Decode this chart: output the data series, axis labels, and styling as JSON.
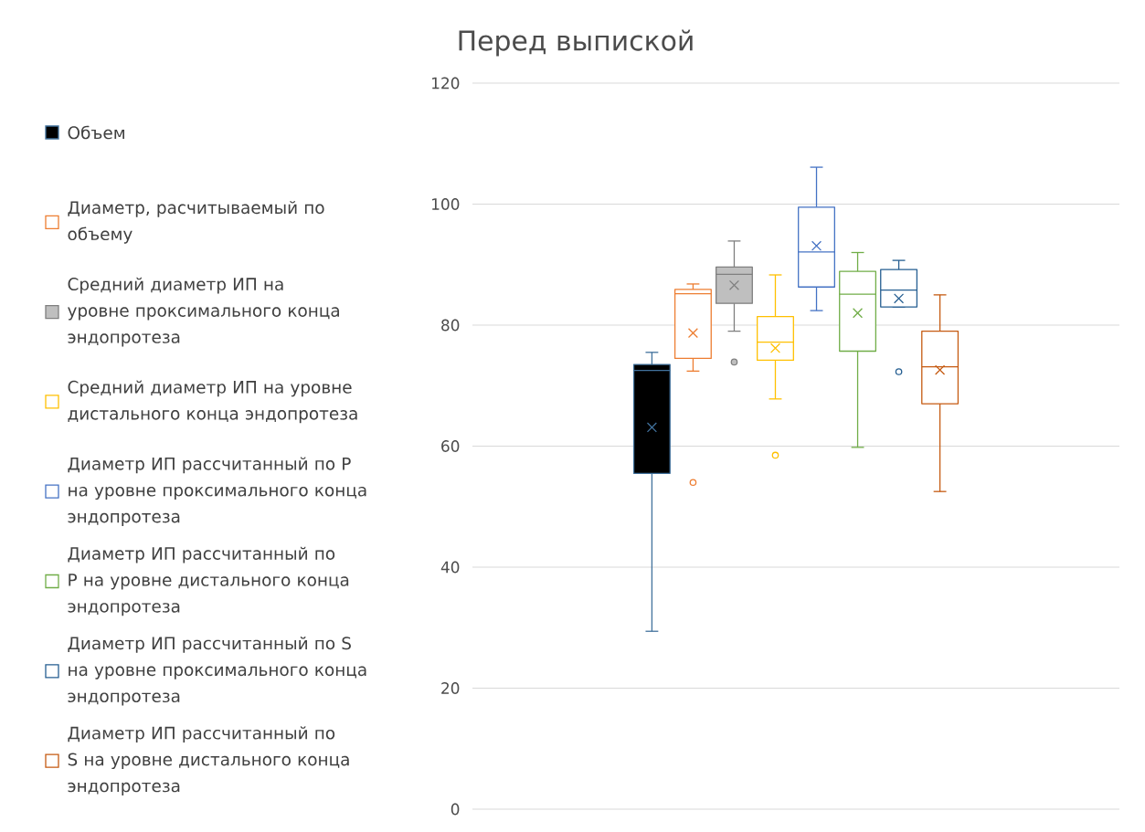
{
  "chart_data": {
    "type": "box",
    "title": "Перед выпиской",
    "categories": [
      null
    ],
    "ylim": [
      0,
      120
    ],
    "yticks": [
      0,
      20,
      40,
      60,
      80,
      100,
      120
    ],
    "grid": "y",
    "legend": "left",
    "series": [
      {
        "name": "Объем",
        "color": "#41719c",
        "colors": [
          "#000000"
        ],
        "boxes": [
          {
            "low": 29.4,
            "q1": 55.5,
            "median": 72.5,
            "q3": 73.5,
            "high": 75.5,
            "mean": 63.1
          }
        ]
      },
      {
        "name": "Диаметр, расчитываемый по объему",
        "color": "#ed7d31",
        "colors": [
          "#ffffff"
        ],
        "boxes": [
          {
            "low": 72.4,
            "q1": 74.5,
            "median": 85.2,
            "q3": 85.9,
            "high": 86.8,
            "mean": 78.7,
            "outliers": [
              54.0
            ]
          }
        ]
      },
      {
        "name": "Средний диаметр ИП на уровне проксимального конца эндопротеза",
        "color": "#7f7f7f",
        "colors": [
          "#bfbfbf"
        ],
        "boxes": [
          {
            "low": 79.0,
            "q1": 83.6,
            "median": 88.4,
            "q3": 89.6,
            "high": 93.9,
            "mean": 86.6,
            "outliers": [
              73.9
            ]
          }
        ]
      },
      {
        "name": "Средний диаметр ИП на уровне дистального конца эндопротеза",
        "color": "#ffc000",
        "colors": [
          "#ffffff"
        ],
        "boxes": [
          {
            "low": 67.8,
            "q1": 74.2,
            "median": 77.2,
            "q3": 81.4,
            "high": 88.3,
            "mean": 76.2,
            "outliers": [
              58.5
            ]
          }
        ]
      },
      {
        "name": "Диаметр ИП рассчитанный по P на уровне проксимального конца эндопротеза",
        "color": "#4472c4",
        "colors": [
          "#ffffff"
        ],
        "boxes": [
          {
            "low": 82.4,
            "q1": 86.3,
            "median": 92.1,
            "q3": 99.5,
            "high": 106.1,
            "mean": 93.1
          }
        ]
      },
      {
        "name": "Диаметр ИП рассчитанный по P на уровне дистального конца эндопротеза",
        "color": "#70ad47",
        "colors": [
          "#ffffff"
        ],
        "boxes": [
          {
            "low": 59.8,
            "q1": 75.7,
            "median": 85.1,
            "q3": 88.9,
            "high": 92.0,
            "mean": 82.0
          }
        ]
      },
      {
        "name": "Диаметр ИП рассчитанный по S на уровне проксимального конца эндопротеза",
        "color": "#255e91",
        "colors": [
          "#ffffff"
        ],
        "boxes": [
          {
            "low": 83.0,
            "q1": 83.0,
            "median": 85.8,
            "q3": 89.2,
            "high": 90.7,
            "mean": 84.4,
            "outliers": [
              72.3
            ]
          }
        ]
      },
      {
        "name": "Диаметр ИП рассчитанный по S на уровне дистального конца эндопротеза",
        "color": "#c55a11",
        "colors": [
          "#ffffff"
        ],
        "boxes": [
          {
            "low": 52.5,
            "q1": 67.0,
            "median": 73.1,
            "q3": 79.0,
            "high": 85.0,
            "mean": 72.6
          }
        ]
      }
    ]
  }
}
